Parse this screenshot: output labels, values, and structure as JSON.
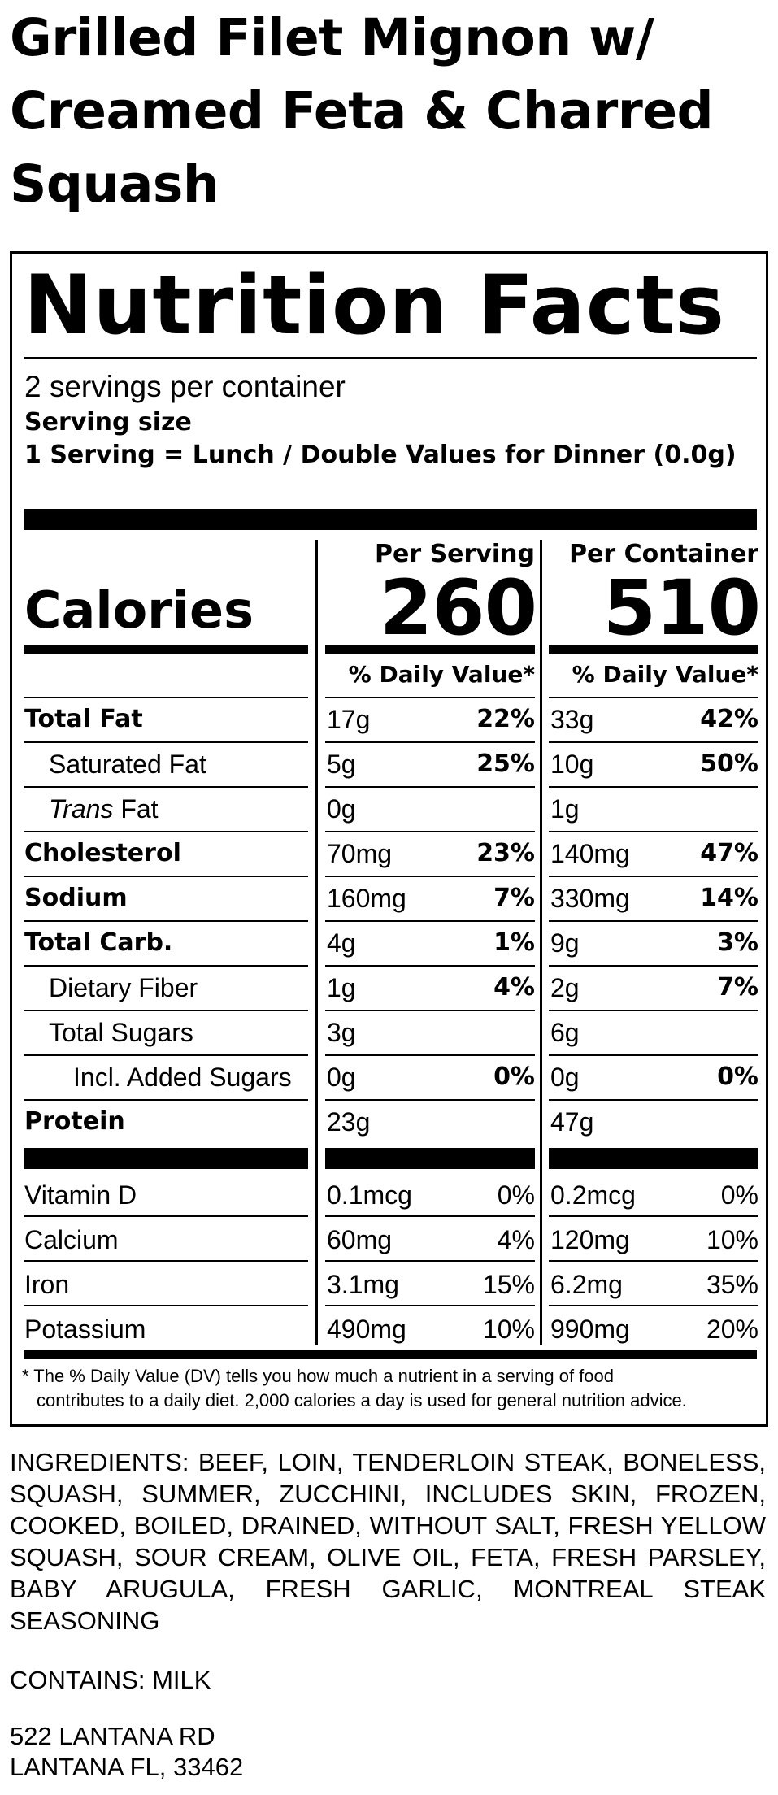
{
  "title": "Grilled Filet Mignon w/ Creamed Feta & Charred Squash",
  "label": {
    "heading": "Nutrition Facts",
    "servings_per_container": "2 servings per container",
    "serving_size_label": "Serving size",
    "serving_size_value": "1 Serving = Lunch / Double Values for Dinner (0.0g)",
    "calories_label": "Calories",
    "columns": [
      {
        "header": "Per Serving",
        "calories": "260",
        "dv_header": "% Daily Value*"
      },
      {
        "header": "Per Container",
        "calories": "510",
        "dv_header": "% Daily Value*"
      }
    ],
    "nutrients": [
      {
        "name": "Total Fat",
        "prefix": "",
        "style": "bold",
        "indent": 0,
        "serving": {
          "amount": "17g",
          "dv": "22%"
        },
        "container": {
          "amount": "33g",
          "dv": "42%"
        }
      },
      {
        "name": "Saturated Fat",
        "prefix": "",
        "style": "normal",
        "indent": 1,
        "serving": {
          "amount": "5g",
          "dv": "25%"
        },
        "container": {
          "amount": "10g",
          "dv": "50%"
        }
      },
      {
        "name": "Fat",
        "prefix": "Trans",
        "style": "normal",
        "indent": 1,
        "serving": {
          "amount": "0g",
          "dv": ""
        },
        "container": {
          "amount": "1g",
          "dv": ""
        }
      },
      {
        "name": "Cholesterol",
        "prefix": "",
        "style": "bold",
        "indent": 0,
        "serving": {
          "amount": "70mg",
          "dv": "23%"
        },
        "container": {
          "amount": "140mg",
          "dv": "47%"
        }
      },
      {
        "name": "Sodium",
        "prefix": "",
        "style": "bold",
        "indent": 0,
        "serving": {
          "amount": "160mg",
          "dv": "7%"
        },
        "container": {
          "amount": "330mg",
          "dv": "14%"
        }
      },
      {
        "name": "Total Carb.",
        "prefix": "",
        "style": "bold",
        "indent": 0,
        "serving": {
          "amount": "4g",
          "dv": "1%"
        },
        "container": {
          "amount": "9g",
          "dv": "3%"
        }
      },
      {
        "name": "Dietary Fiber",
        "prefix": "",
        "style": "normal",
        "indent": 1,
        "serving": {
          "amount": "1g",
          "dv": "4%"
        },
        "container": {
          "amount": "2g",
          "dv": "7%"
        }
      },
      {
        "name": "Total Sugars",
        "prefix": "",
        "style": "normal",
        "indent": 1,
        "serving": {
          "amount": "3g",
          "dv": ""
        },
        "container": {
          "amount": "6g",
          "dv": ""
        }
      },
      {
        "name": "Incl. Added Sugars",
        "prefix": "",
        "style": "normal",
        "indent": 2,
        "serving": {
          "amount": "0g",
          "dv": "0%"
        },
        "container": {
          "amount": "0g",
          "dv": "0%"
        }
      },
      {
        "name": "Protein",
        "prefix": "",
        "style": "bold",
        "indent": 0,
        "serving": {
          "amount": "23g",
          "dv": ""
        },
        "container": {
          "amount": "47g",
          "dv": ""
        }
      }
    ],
    "vitamins": [
      {
        "name": "Vitamin D",
        "serving": {
          "amount": "0.1mcg",
          "dv": "0%"
        },
        "container": {
          "amount": "0.2mcg",
          "dv": "0%"
        }
      },
      {
        "name": "Calcium",
        "serving": {
          "amount": "60mg",
          "dv": "4%"
        },
        "container": {
          "amount": "120mg",
          "dv": "10%"
        }
      },
      {
        "name": "Iron",
        "serving": {
          "amount": "3.1mg",
          "dv": "15%"
        },
        "container": {
          "amount": "6.2mg",
          "dv": "35%"
        }
      },
      {
        "name": "Potassium",
        "serving": {
          "amount": "490mg",
          "dv": "10%"
        },
        "container": {
          "amount": "990mg",
          "dv": "20%"
        }
      }
    ],
    "footnote_line1": "* The % Daily Value (DV) tells you how much a nutrient in a serving of food",
    "footnote_line2": "contributes to a daily diet. 2,000 calories a day is used for general nutrition advice."
  },
  "ingredients": "INGREDIENTS: BEEF, LOIN, TENDERLOIN STEAK, BONELESS, SQUASH, SUMMER, ZUCCHINI, INCLUDES SKIN, FROZEN, COOKED, BOILED, DRAINED, WITHOUT SALT, FRESH YELLOW SQUASH, SOUR CREAM, OLIVE OIL, FETA, FRESH PARSLEY, BABY ARUGULA, FRESH GARLIC, MONTREAL STEAK SEASONING",
  "contains": "CONTAINS: MILK",
  "address": {
    "line1": "522 LANTANA RD",
    "line2": "LANTANA FL, 33462"
  }
}
